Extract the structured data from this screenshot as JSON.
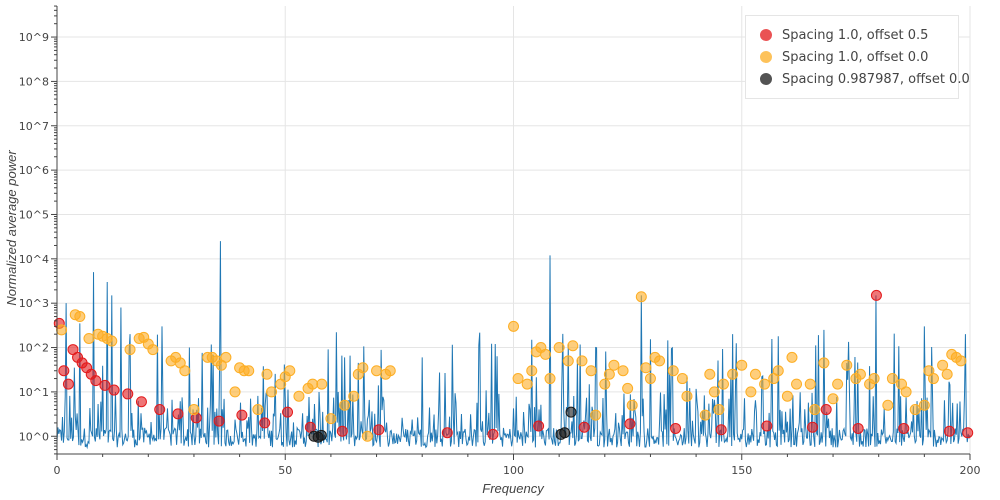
{
  "chart_data": {
    "type": "scatter",
    "title": "",
    "xlabel": "Frequency",
    "ylabel": "Normalized average power",
    "xlim": [
      0,
      200
    ],
    "ylim_log10": [
      -0.4,
      9.7
    ],
    "y_scale": "log",
    "x_ticks": [
      "0",
      "50",
      "100",
      "150",
      "200"
    ],
    "y_ticks": [
      "10^0",
      "10^1",
      "10^2",
      "10^3",
      "10^4",
      "10^5",
      "10^6",
      "10^7",
      "10^8",
      "10^9"
    ],
    "grid": true,
    "legend_position": "top-right",
    "series": [
      {
        "name": "Spacing 1.0, offset 0.5",
        "color": "#e31a1c",
        "x": [
          0.5,
          1.5,
          2.5,
          3.5,
          4.5,
          5.5,
          6.5,
          7.5,
          8.5,
          10.5,
          12.5,
          15.5,
          18.5,
          22.5,
          26.5,
          30.5,
          35.5,
          40.5,
          45.5,
          50.5,
          55.5,
          62.5,
          70.5,
          85.5,
          95.5,
          105.5,
          115.5,
          125.5,
          135.5,
          145.5,
          155.5,
          165.5,
          168.5,
          175.5,
          179.5,
          185.5,
          195.5,
          199.5
        ],
        "y": [
          350,
          30,
          15,
          90,
          60,
          45,
          35,
          25,
          18,
          14,
          11,
          9,
          6,
          4,
          3.2,
          2.6,
          2.2,
          3.0,
          2.0,
          3.5,
          1.6,
          1.3,
          1.4,
          1.2,
          1.1,
          1.7,
          1.6,
          1.9,
          1.5,
          1.4,
          1.7,
          1.6,
          4.0,
          1.5,
          1500,
          1.5,
          1.3,
          1.2
        ]
      },
      {
        "name": "Spacing 1.0, offset 0.0",
        "color": "#fdae24",
        "x": [
          1,
          4,
          5,
          7,
          9,
          10,
          11,
          12,
          16,
          18,
          19,
          20,
          21,
          25,
          26,
          27,
          28,
          30,
          33,
          34,
          35,
          36,
          37,
          39,
          40,
          41,
          42,
          44,
          46,
          47,
          49,
          50,
          51,
          53,
          55,
          56,
          58,
          60,
          63,
          65,
          66,
          67,
          68,
          70,
          72,
          73,
          100,
          101,
          103,
          104,
          105,
          106,
          107,
          108,
          110,
          112,
          113,
          115,
          117,
          118,
          120,
          121,
          122,
          124,
          125,
          126,
          128,
          129,
          130,
          131,
          132,
          135,
          137,
          138,
          142,
          143,
          144,
          145,
          146,
          148,
          150,
          152,
          153,
          155,
          157,
          158,
          160,
          161,
          162,
          165,
          166,
          168,
          170,
          171,
          173,
          175,
          176,
          178,
          179,
          182,
          183,
          185,
          186,
          188,
          190,
          191,
          192,
          194,
          195,
          196,
          197,
          198
        ],
        "y": [
          250,
          550,
          500,
          160,
          200,
          180,
          160,
          140,
          90,
          160,
          170,
          120,
          90,
          50,
          60,
          45,
          30,
          4,
          60,
          60,
          50,
          40,
          60,
          10,
          35,
          30,
          30,
          4,
          25,
          10,
          15,
          22,
          30,
          8,
          12,
          15,
          15,
          2.5,
          5,
          8,
          25,
          35,
          1.0,
          30,
          25,
          30,
          300,
          20,
          15,
          30,
          80,
          100,
          70,
          20,
          100,
          50,
          110,
          50,
          30,
          3.0,
          15,
          25,
          40,
          30,
          12,
          5,
          1400,
          35,
          20,
          60,
          50,
          30,
          20,
          8,
          3,
          25,
          10,
          4,
          15,
          25,
          40,
          10,
          25,
          15,
          20,
          30,
          8,
          60,
          15,
          15,
          4,
          45,
          7,
          15,
          40,
          20,
          25,
          15,
          20,
          5,
          20,
          15,
          10,
          4,
          5,
          30,
          20,
          40,
          25,
          70,
          60,
          50
        ]
      },
      {
        "name": "Spacing 0.987987, offset 0.0",
        "color": "#1a1a1a",
        "x": [
          56.3,
          57.2,
          57.9,
          110.4,
          111.2,
          112.6
        ],
        "y": [
          1.0,
          0.95,
          1.05,
          1.1,
          1.2,
          3.5
        ]
      }
    ],
    "spectrum": {
      "name": "",
      "color": "#1f77b4",
      "baseline": 1.0,
      "spikes": [
        {
          "x": 2,
          "y": 1000
        },
        {
          "x": 5,
          "y": 350
        },
        {
          "x": 8,
          "y": 5000
        },
        {
          "x": 11,
          "y": 3000
        },
        {
          "x": 12,
          "y": 1500
        },
        {
          "x": 14,
          "y": 800
        },
        {
          "x": 16,
          "y": 200
        },
        {
          "x": 23,
          "y": 300
        },
        {
          "x": 29,
          "y": 100
        },
        {
          "x": 35.8,
          "y": 25000
        },
        {
          "x": 63,
          "y": 60
        },
        {
          "x": 66,
          "y": 45
        },
        {
          "x": 80,
          "y": 60
        },
        {
          "x": 96,
          "y": 120
        },
        {
          "x": 104,
          "y": 150
        },
        {
          "x": 108,
          "y": 12000
        },
        {
          "x": 112,
          "y": 120
        },
        {
          "x": 118,
          "y": 100
        },
        {
          "x": 128,
          "y": 1500
        },
        {
          "x": 148,
          "y": 200
        },
        {
          "x": 158,
          "y": 180
        },
        {
          "x": 168,
          "y": 250
        },
        {
          "x": 179.4,
          "y": 1500
        },
        {
          "x": 190,
          "y": 300
        },
        {
          "x": 199,
          "y": 200
        }
      ]
    }
  }
}
